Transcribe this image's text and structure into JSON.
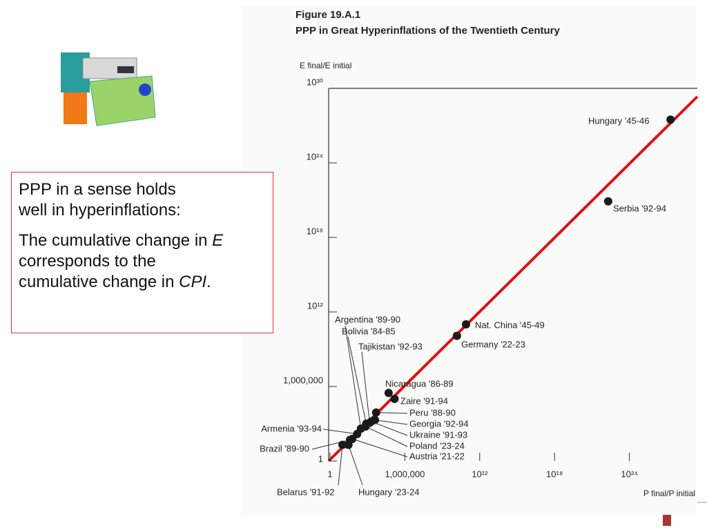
{
  "slide": {
    "box": {
      "line1": "PPP in a sense holds",
      "line2": "well in hyperinflations:",
      "p2a": "The cumulative change in ",
      "p2b": "E",
      "p2c": "corresponds to the",
      "p2d": "cumulative change in ",
      "p2e": "CPI",
      "p2f": "."
    }
  },
  "chart_data": {
    "type": "scatter",
    "figure": "Figure 19.A.1",
    "title": "PPP in Great Hyperinflations of the Twentieth Century",
    "ylabel": "E final/E initial",
    "xlabel": "P final/P initial",
    "log_x": true,
    "log_y": true,
    "color": "#1a1a1a",
    "categories": [
      "Hungary '45-46",
      "Serbia '92-94",
      "Nat. China '45-49",
      "Germany '22-23",
      "Argentina '89-90",
      "Bolivia '84-85",
      "Tajikistan '92-93",
      "Nicaragua '86-89",
      "Zaire '91-94",
      "Peru '88-90",
      "Georgia '92-94",
      "Ukraine '91-93",
      "Poland '23-24",
      "Austria '21-22",
      "Armenia '93-94",
      "Brazil '89-90",
      "Belarus '91-92",
      "Hungary '23-24"
    ],
    "x": [
      2e+27,
      2e+22,
      80000000000.0,
      15000000000.0,
      300,
      800,
      1500,
      50000.0,
      150000.0,
      5000,
      4000,
      2000,
      700,
      60,
      150,
      40,
      10,
      30
    ],
    "values": [
      3e+27,
      8e+20,
      100000000000.0,
      12000000000.0,
      400,
      1000,
      1200,
      300000.0,
      100000.0,
      8000,
      2000,
      1500,
      600,
      60,
      150,
      50,
      20,
      20
    ],
    "xlim": [
      1,
      1e+30
    ],
    "ylim": [
      1,
      1e+30
    ],
    "xticks": [
      1,
      {
        "value": 1000000,
        "label": "1,000,000"
      },
      {
        "value": 1000000000000.0,
        "label": "10¹²"
      },
      {
        "value": 1e+18,
        "label": "10¹⁸"
      },
      {
        "value": 1e+24,
        "label": "10²⁴"
      }
    ],
    "yticks": [
      1,
      {
        "value": 1000000,
        "label": "1,000,000"
      },
      {
        "value": 1000000000000.0,
        "label": "10¹²"
      },
      {
        "value": 1e+18,
        "label": "10¹⁸"
      },
      {
        "value": 1e+24,
        "label": "10²⁴"
      },
      {
        "value": 1e+30,
        "label": "10³⁰"
      }
    ]
  }
}
